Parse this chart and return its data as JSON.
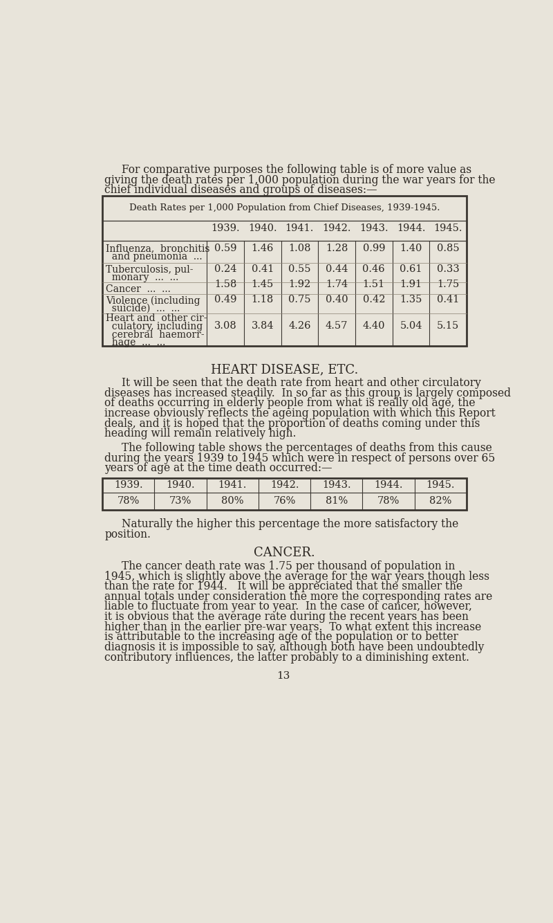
{
  "page_bg": "#e8e4da",
  "text_color": "#2a2520",
  "font_size_body": 11.2,
  "font_size_table_title": 9.5,
  "font_size_table_data": 10.5,
  "font_size_heading": 13,
  "font_size_page_num": 11,
  "intro_lines": [
    "For comparative purposes the following table is of more value as",
    "giving the death rates per 1,000 population during the war years for the",
    "chief individual diseases and groups of diseases:—"
  ],
  "table1_title": "Death Rates per 1,000 Population from Chief Diseases, 1939-1945.",
  "table1_years": [
    "1939.",
    "1940.",
    "1941.",
    "1942.",
    "1943.",
    "1944.",
    "1945."
  ],
  "table1_rows": [
    {
      "label_lines": [
        "Influenza,  bronchitis",
        "  and pneumonia  ..."
      ],
      "values": [
        "0.59",
        "1.46",
        "1.08",
        "1.28",
        "0.99",
        "1.40",
        "0.85"
      ]
    },
    {
      "label_lines": [
        "Tuberculosis, pul-",
        "  monary  ...  ..."
      ],
      "values": [
        "0.24",
        "0.41",
        "0.55",
        "0.44",
        "0.46",
        "0.61",
        "0.33"
      ]
    },
    {
      "label_lines": [
        "Cancer  ...  ..."
      ],
      "values": [
        "1.58",
        "1.45",
        "1.92",
        "1.74",
        "1.51",
        "1.91",
        "1.75"
      ]
    },
    {
      "label_lines": [
        "Violence (including",
        "  suicide)  ...  ..."
      ],
      "values": [
        "0.49",
        "1.18",
        "0.75",
        "0.40",
        "0.42",
        "1.35",
        "0.41"
      ]
    },
    {
      "label_lines": [
        "Heart and  other cir-",
        "  culatory, including",
        "  cerebral  haemorr-",
        "  hage  ...  ..."
      ],
      "values": [
        "3.08",
        "3.84",
        "4.26",
        "4.57",
        "4.40",
        "5.04",
        "5.15"
      ]
    }
  ],
  "heart_heading": "HEART DISEASE, ETC.",
  "heart_lines1": [
    "It will be seen that the death rate from heart and other circulatory",
    "diseases has increased steadily.  In so far as this group is largely composed",
    "of deaths occurring in elderly people from what is really old age, the",
    "increase obviously reflects the ageing population with which this Report",
    "deals, and it is hoped that the proportion of deaths coming under this",
    "heading will remain relatively high."
  ],
  "heart_lines2": [
    "The following table shows the percentages of deaths from this cause",
    "during the years 1939 to 1945 which were in respect of persons over 65",
    "years of age at the time death occurred:—"
  ],
  "table2_years": [
    "1939.",
    "1940.",
    "1941.",
    "1942.",
    "1943.",
    "1944.",
    "1945."
  ],
  "table2_values": [
    "78%",
    "73%",
    "80%",
    "76%",
    "81%",
    "78%",
    "82%"
  ],
  "naturally_lines": [
    "Naturally the higher this percentage the more satisfactory the",
    "position."
  ],
  "cancer_heading": "CANCER.",
  "cancer_lines": [
    "The cancer death rate was 1.75 per thousand of population in",
    "1945, which is slightly above the average for the war years though less",
    "than the rate for 1944.   It will be appreciated that the smaller the",
    "annual totals under consideration the more the corresponding rates are",
    "liable to fluctuate from year to year.  In the case of cancer, however,",
    "it is obvious that the average rate during the recent years has been",
    "higher than in the earlier pre-war years.  To what extent this increase",
    "is attributable to the increasing age of the population or to better",
    "diagnosis it is impossible to say, although both have been undoubtedly",
    "contributory influences, the latter probably to a diminishing extent."
  ],
  "page_number": "13"
}
